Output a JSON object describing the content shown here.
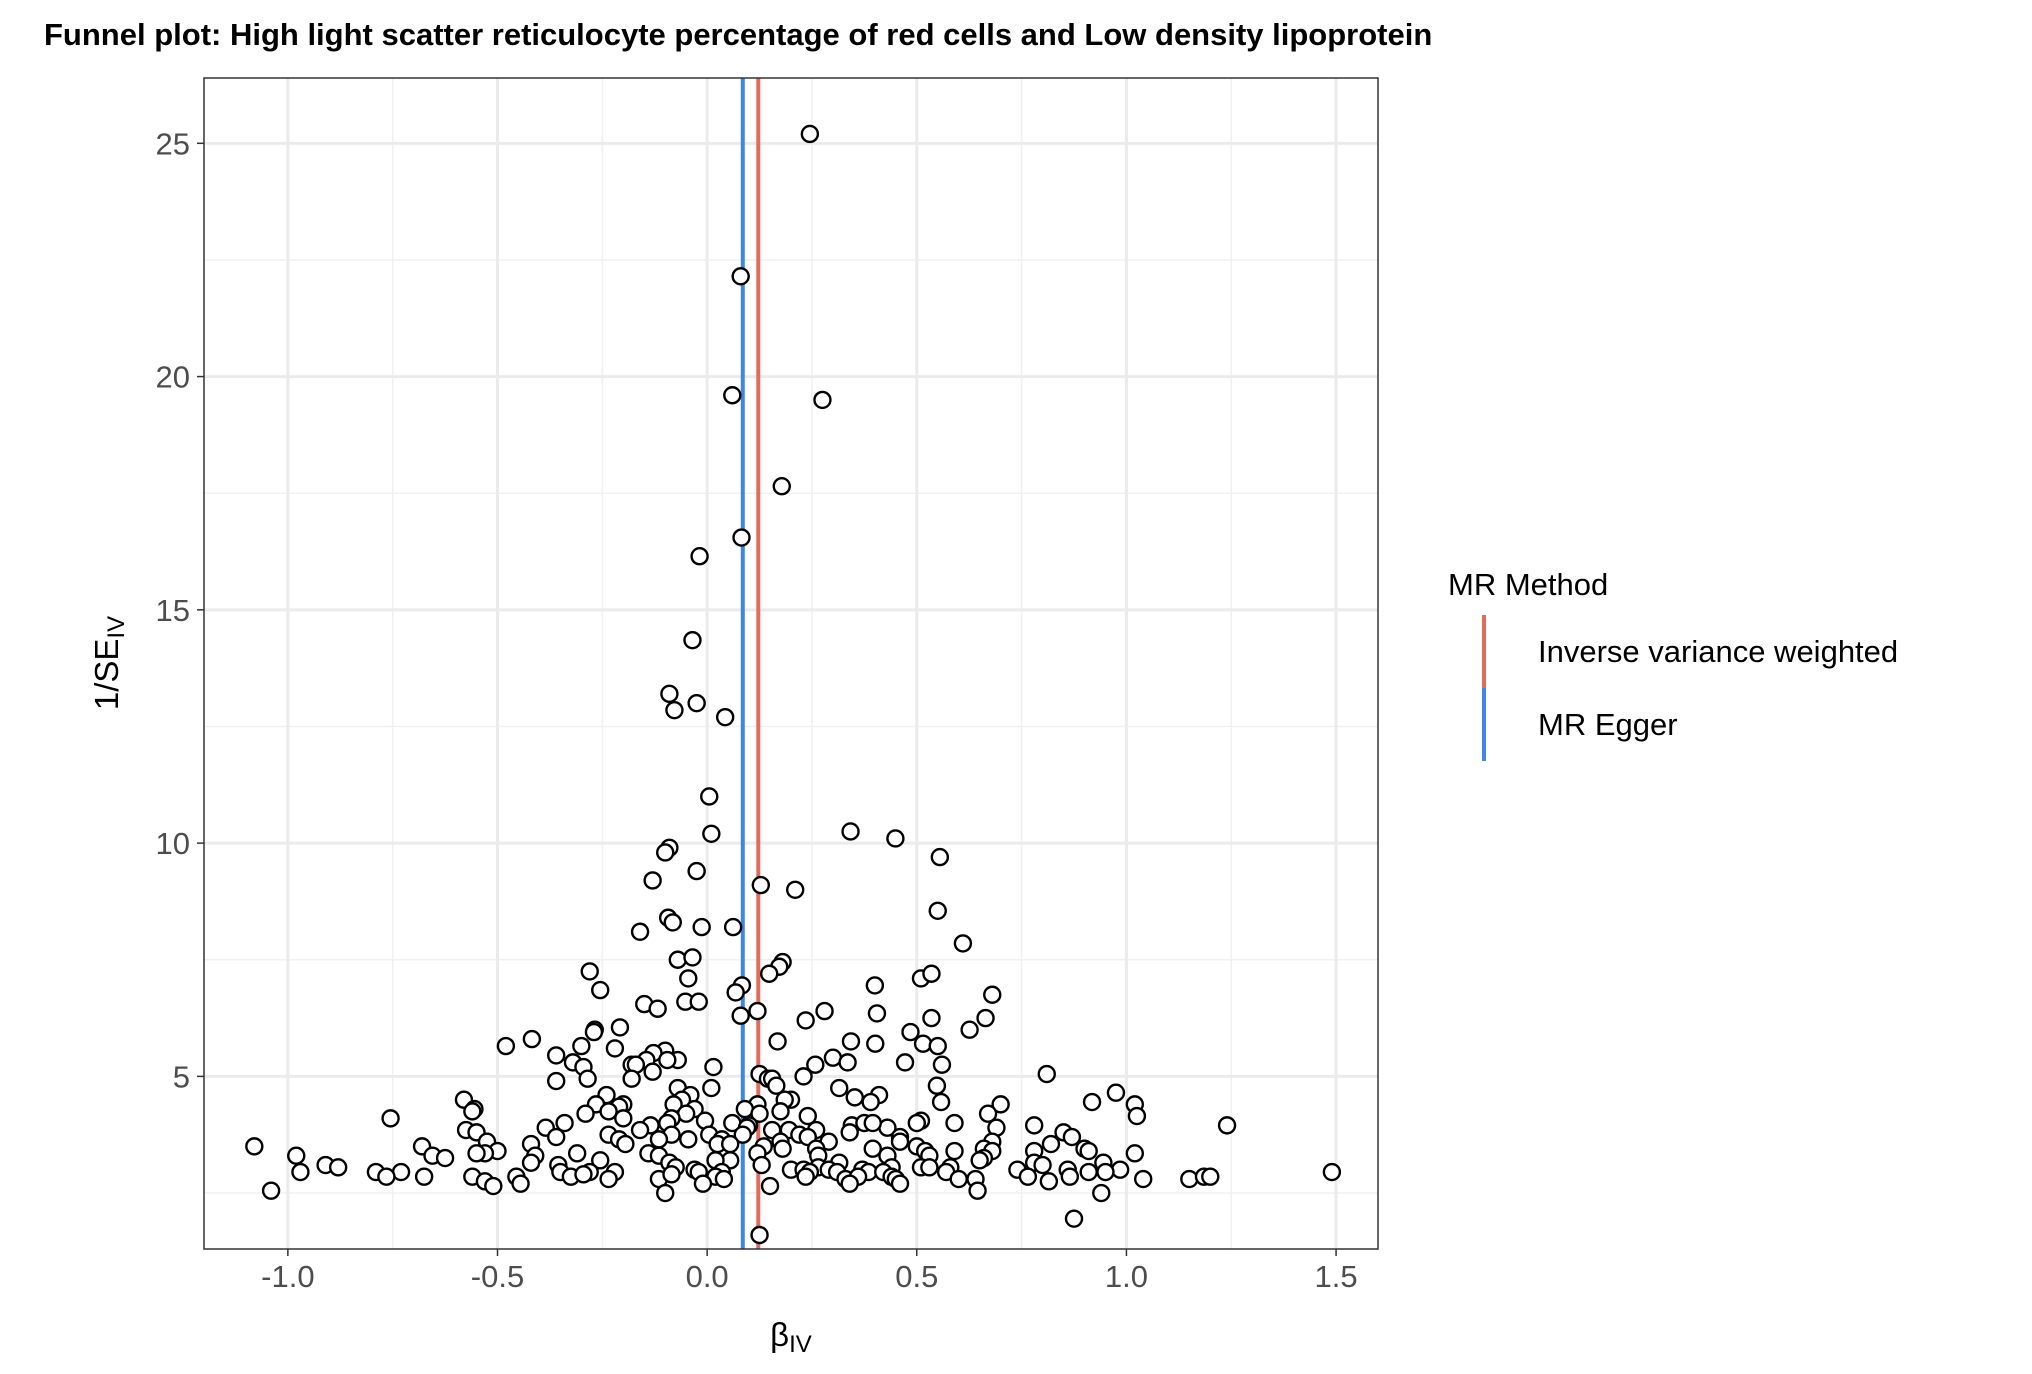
{
  "chart_data": {
    "type": "scatter",
    "title": "Funnel plot: High light scatter reticulocyte percentage of red cells and Low density lipoprotein",
    "xlabel": {
      "main": "β",
      "sub": "IV"
    },
    "ylabel": {
      "main": "1/SE",
      "sub": "IV"
    },
    "xlim": [
      -1.2,
      1.6
    ],
    "ylim": [
      1.3,
      26.4
    ],
    "x_ticks": [
      -1.0,
      -0.5,
      0.0,
      0.5,
      1.0,
      1.5
    ],
    "x_tick_labels": [
      "-1.0",
      "-0.5",
      "0.0",
      "0.5",
      "1.0",
      "1.5"
    ],
    "y_ticks": [
      5,
      10,
      15,
      20,
      25
    ],
    "y_tick_labels": [
      "5",
      "10",
      "15",
      "20",
      "25"
    ],
    "grid": true,
    "legend": {
      "title": "MR Method",
      "position": "right",
      "entries": [
        {
          "label": "Inverse variance weighted",
          "color": "#e06c5e"
        },
        {
          "label": "MR Egger",
          "color": "#3f86e6"
        }
      ]
    },
    "vlines": [
      {
        "name": "Inverse variance weighted",
        "x": 0.122,
        "color": "#e06c5e"
      },
      {
        "name": "MR Egger",
        "x": 0.085,
        "color": "#3f86e6"
      }
    ],
    "points": [
      [
        0.245,
        25.2
      ],
      [
        0.08,
        22.15
      ],
      [
        0.06,
        19.6
      ],
      [
        0.275,
        19.5
      ],
      [
        0.178,
        17.65
      ],
      [
        0.082,
        16.55
      ],
      [
        -0.018,
        16.15
      ],
      [
        -0.035,
        14.35
      ],
      [
        -0.09,
        13.2
      ],
      [
        -0.025,
        13.0
      ],
      [
        -0.078,
        12.85
      ],
      [
        0.043,
        12.7
      ],
      [
        0.005,
        11.0
      ],
      [
        0.01,
        10.2
      ],
      [
        0.342,
        10.25
      ],
      [
        0.449,
        10.1
      ],
      [
        -0.09,
        9.9
      ],
      [
        -0.1,
        9.8
      ],
      [
        0.555,
        9.7
      ],
      [
        -0.025,
        9.4
      ],
      [
        0.128,
        9.1
      ],
      [
        -0.13,
        9.2
      ],
      [
        0.21,
        9.0
      ],
      [
        -0.093,
        8.4
      ],
      [
        0.55,
        8.55
      ],
      [
        -0.082,
        8.3
      ],
      [
        -0.013,
        8.2
      ],
      [
        0.062,
        8.2
      ],
      [
        -0.16,
        8.1
      ],
      [
        0.61,
        7.85
      ],
      [
        -0.07,
        7.5
      ],
      [
        -0.035,
        7.55
      ],
      [
        0.18,
        7.45
      ],
      [
        0.172,
        7.35
      ],
      [
        -0.045,
        7.1
      ],
      [
        0.148,
        7.2
      ],
      [
        0.51,
        7.1
      ],
      [
        0.535,
        7.2
      ],
      [
        -0.28,
        7.25
      ],
      [
        0.4,
        6.95
      ],
      [
        0.083,
        6.95
      ],
      [
        0.068,
        6.8
      ],
      [
        -0.255,
        6.85
      ],
      [
        0.68,
        6.75
      ],
      [
        -0.15,
        6.55
      ],
      [
        -0.052,
        6.6
      ],
      [
        -0.02,
        6.6
      ],
      [
        -0.118,
        6.45
      ],
      [
        0.12,
        6.4
      ],
      [
        0.08,
        6.3
      ],
      [
        0.28,
        6.4
      ],
      [
        0.405,
        6.35
      ],
      [
        0.235,
        6.2
      ],
      [
        0.535,
        6.25
      ],
      [
        0.664,
        6.25
      ],
      [
        0.626,
        6.0
      ],
      [
        -0.268,
        6.0
      ],
      [
        -0.208,
        6.05
      ],
      [
        -0.27,
        5.95
      ],
      [
        0.485,
        5.95
      ],
      [
        -0.418,
        5.8
      ],
      [
        0.168,
        5.75
      ],
      [
        0.343,
        5.75
      ],
      [
        0.401,
        5.7
      ],
      [
        0.515,
        5.7
      ],
      [
        0.55,
        5.65
      ],
      [
        -0.48,
        5.65
      ],
      [
        -0.3,
        5.65
      ],
      [
        -0.22,
        5.6
      ],
      [
        -0.1,
        5.55
      ],
      [
        -0.128,
        5.5
      ],
      [
        -0.36,
        5.45
      ],
      [
        -0.145,
        5.35
      ],
      [
        -0.07,
        5.35
      ],
      [
        0.3,
        5.4
      ],
      [
        -0.32,
        5.3
      ],
      [
        -0.095,
        5.35
      ],
      [
        0.258,
        5.25
      ],
      [
        0.472,
        5.3
      ],
      [
        -0.18,
        5.25
      ],
      [
        0.015,
        5.2
      ],
      [
        -0.295,
        5.2
      ],
      [
        -0.17,
        5.25
      ],
      [
        0.335,
        5.3
      ],
      [
        0.56,
        5.25
      ],
      [
        0.125,
        5.05
      ],
      [
        -0.13,
        5.1
      ],
      [
        0.145,
        4.95
      ],
      [
        -0.18,
        4.95
      ],
      [
        -0.36,
        4.9
      ],
      [
        0.23,
        5.0
      ],
      [
        0.155,
        4.95
      ],
      [
        0.81,
        5.05
      ],
      [
        -0.07,
        4.75
      ],
      [
        0.01,
        4.75
      ],
      [
        0.315,
        4.75
      ],
      [
        -0.285,
        4.95
      ],
      [
        0.548,
        4.8
      ],
      [
        -0.04,
        4.6
      ],
      [
        0.165,
        4.8
      ],
      [
        -0.24,
        4.6
      ],
      [
        0.41,
        4.6
      ],
      [
        0.975,
        4.65
      ],
      [
        0.2,
        4.5
      ],
      [
        -0.06,
        4.5
      ],
      [
        -0.58,
        4.5
      ],
      [
        0.918,
        4.45
      ],
      [
        0.185,
        4.5
      ],
      [
        0.352,
        4.55
      ],
      [
        -0.2,
        4.4
      ],
      [
        0.12,
        4.4
      ],
      [
        0.7,
        4.4
      ],
      [
        -0.21,
        4.35
      ],
      [
        0.558,
        4.45
      ],
      [
        0.39,
        4.45
      ],
      [
        -0.265,
        4.4
      ],
      [
        0.09,
        4.3
      ],
      [
        -0.08,
        4.4
      ],
      [
        -0.555,
        4.3
      ],
      [
        1.02,
        4.4
      ],
      [
        -0.56,
        4.25
      ],
      [
        -0.235,
        4.25
      ],
      [
        0.175,
        4.25
      ],
      [
        -0.03,
        4.3
      ],
      [
        0.24,
        4.15
      ],
      [
        1.025,
        4.15
      ],
      [
        -0.05,
        4.2
      ],
      [
        0.125,
        4.2
      ],
      [
        -0.085,
        4.1
      ],
      [
        -0.2,
        4.1
      ],
      [
        -0.29,
        4.2
      ],
      [
        0.67,
        4.2
      ],
      [
        -0.755,
        4.1
      ],
      [
        0.51,
        4.05
      ],
      [
        0.5,
        4.0
      ],
      [
        -0.34,
        4.0
      ],
      [
        -0.095,
        4.0
      ],
      [
        -0.005,
        4.05
      ],
      [
        0.06,
        4.0
      ],
      [
        0.59,
        4.0
      ],
      [
        0.345,
        3.95
      ],
      [
        1.24,
        3.95
      ],
      [
        0.375,
        4.0
      ],
      [
        0.78,
        3.95
      ],
      [
        0.43,
        3.9
      ],
      [
        -0.135,
        3.95
      ],
      [
        0.395,
        4.0
      ],
      [
        -0.385,
        3.9
      ],
      [
        -0.16,
        3.85
      ],
      [
        0.1,
        3.95
      ],
      [
        0.095,
        3.9
      ],
      [
        0.195,
        3.85
      ],
      [
        0.26,
        3.85
      ],
      [
        0.69,
        3.9
      ],
      [
        0.155,
        3.85
      ],
      [
        -0.575,
        3.85
      ],
      [
        -0.55,
        3.8
      ],
      [
        0.34,
        3.8
      ],
      [
        -0.235,
        3.75
      ],
      [
        -0.085,
        3.75
      ],
      [
        0.005,
        3.75
      ],
      [
        0.085,
        3.75
      ],
      [
        0.22,
        3.75
      ],
      [
        0.24,
        3.7
      ],
      [
        0.46,
        3.7
      ],
      [
        0.85,
        3.8
      ],
      [
        0.87,
        3.7
      ],
      [
        -0.36,
        3.7
      ],
      [
        -0.21,
        3.65
      ],
      [
        -0.115,
        3.65
      ],
      [
        -0.045,
        3.65
      ],
      [
        0.035,
        3.65
      ],
      [
        0.175,
        3.6
      ],
      [
        0.29,
        3.6
      ],
      [
        0.46,
        3.6
      ],
      [
        0.68,
        3.6
      ],
      [
        -0.525,
        3.6
      ],
      [
        0.82,
        3.55
      ],
      [
        -0.42,
        3.55
      ],
      [
        0.025,
        3.55
      ],
      [
        0.055,
        3.55
      ],
      [
        -0.68,
        3.5
      ],
      [
        -1.08,
        3.5
      ],
      [
        0.135,
        3.5
      ],
      [
        0.18,
        3.45
      ],
      [
        0.26,
        3.45
      ],
      [
        -0.195,
        3.55
      ],
      [
        0.395,
        3.45
      ],
      [
        0.5,
        3.5
      ],
      [
        0.66,
        3.45
      ],
      [
        0.9,
        3.45
      ],
      [
        0.52,
        3.4
      ],
      [
        0.59,
        3.4
      ],
      [
        -0.5,
        3.4
      ],
      [
        -0.53,
        3.35
      ],
      [
        0.68,
        3.4
      ],
      [
        0.78,
        3.4
      ],
      [
        0.91,
        3.4
      ],
      [
        1.02,
        3.35
      ],
      [
        -0.98,
        3.3
      ],
      [
        -0.655,
        3.3
      ],
      [
        -0.55,
        3.35
      ],
      [
        -0.41,
        3.3
      ],
      [
        -0.31,
        3.35
      ],
      [
        -0.14,
        3.35
      ],
      [
        -0.115,
        3.3
      ],
      [
        0.12,
        3.35
      ],
      [
        0.265,
        3.3
      ],
      [
        0.43,
        3.3
      ],
      [
        0.53,
        3.3
      ],
      [
        0.66,
        3.25
      ],
      [
        0.65,
        3.2
      ],
      [
        -0.625,
        3.25
      ],
      [
        -0.255,
        3.2
      ],
      [
        0.055,
        3.2
      ],
      [
        0.02,
        3.2
      ],
      [
        -0.42,
        3.15
      ],
      [
        -0.09,
        3.15
      ],
      [
        0.13,
        3.1
      ],
      [
        0.315,
        3.15
      ],
      [
        0.78,
        3.15
      ],
      [
        0.945,
        3.15
      ],
      [
        0.8,
        3.1
      ],
      [
        -0.91,
        3.1
      ],
      [
        -0.355,
        3.1
      ],
      [
        -0.075,
        3.05
      ],
      [
        0.44,
        3.05
      ],
      [
        0.51,
        3.05
      ],
      [
        0.53,
        3.05
      ],
      [
        0.58,
        3.05
      ],
      [
        0.265,
        3.05
      ],
      [
        0.29,
        3.0
      ],
      [
        -0.88,
        3.05
      ],
      [
        -0.03,
        3.0
      ],
      [
        0.2,
        3.0
      ],
      [
        0.23,
        3.0
      ],
      [
        0.37,
        3.0
      ],
      [
        0.74,
        3.0
      ],
      [
        0.86,
        3.0
      ],
      [
        0.985,
        3.0
      ],
      [
        -0.97,
        2.95
      ],
      [
        -0.79,
        2.95
      ],
      [
        -0.73,
        2.95
      ],
      [
        -0.28,
        2.95
      ],
      [
        -0.35,
        2.95
      ],
      [
        -0.22,
        2.95
      ],
      [
        -0.02,
        2.95
      ],
      [
        0.035,
        2.95
      ],
      [
        0.245,
        2.95
      ],
      [
        0.31,
        2.95
      ],
      [
        0.385,
        2.95
      ],
      [
        0.42,
        2.95
      ],
      [
        0.57,
        2.95
      ],
      [
        0.91,
        2.95
      ],
      [
        0.95,
        2.95
      ],
      [
        1.49,
        2.95
      ],
      [
        -0.765,
        2.85
      ],
      [
        -0.675,
        2.85
      ],
      [
        -0.56,
        2.85
      ],
      [
        -0.455,
        2.85
      ],
      [
        -0.325,
        2.85
      ],
      [
        -0.295,
        2.9
      ],
      [
        -0.235,
        2.8
      ],
      [
        -0.115,
        2.8
      ],
      [
        -0.085,
        2.9
      ],
      [
        0.02,
        2.85
      ],
      [
        0.04,
        2.8
      ],
      [
        0.235,
        2.85
      ],
      [
        0.33,
        2.8
      ],
      [
        0.36,
        2.85
      ],
      [
        0.44,
        2.85
      ],
      [
        0.45,
        2.8
      ],
      [
        0.6,
        2.8
      ],
      [
        0.64,
        2.8
      ],
      [
        0.765,
        2.85
      ],
      [
        0.815,
        2.75
      ],
      [
        0.865,
        2.85
      ],
      [
        1.04,
        2.8
      ],
      [
        1.15,
        2.8
      ],
      [
        1.185,
        2.85
      ],
      [
        1.2,
        2.85
      ],
      [
        -0.53,
        2.75
      ],
      [
        -0.445,
        2.7
      ],
      [
        -0.01,
        2.7
      ],
      [
        0.34,
        2.7
      ],
      [
        0.46,
        2.7
      ],
      [
        0.15,
        2.65
      ],
      [
        -0.51,
        2.65
      ],
      [
        0.645,
        2.55
      ],
      [
        -1.04,
        2.55
      ],
      [
        -0.1,
        2.5
      ],
      [
        0.94,
        2.5
      ],
      [
        0.875,
        1.95
      ],
      [
        0.125,
        1.6
      ]
    ]
  }
}
